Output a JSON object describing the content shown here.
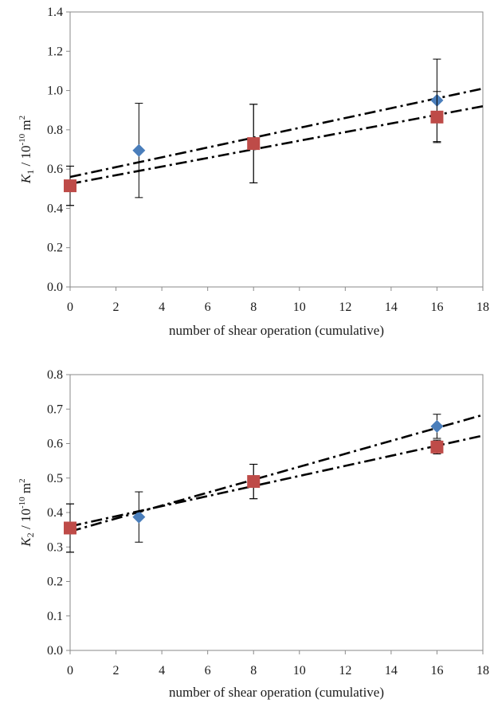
{
  "chart_data": [
    {
      "type": "scatter",
      "ylabel": {
        "var": "K",
        "sub": "1",
        "mid": " / 10",
        "sup": "-10",
        "tail": " m",
        "sup2": "2"
      },
      "xlabel": "number of shear operation (cumulative)",
      "xlim": [
        0,
        18
      ],
      "ylim": [
        0,
        1.4
      ],
      "xticks": [
        "0",
        "2",
        "4",
        "6",
        "8",
        "10",
        "12",
        "14",
        "16",
        "18"
      ],
      "yticks": [
        "0.0",
        "0.2",
        "0.4",
        "0.6",
        "0.8",
        "1.0",
        "1.2",
        "1.4"
      ],
      "grid": false,
      "series": [
        {
          "marker": "diamond",
          "color": "#4a7ebb",
          "points": [
            {
              "x": 0,
              "y": 0.515,
              "err": 0.1
            },
            {
              "x": 3,
              "y": 0.695,
              "err": 0.24
            },
            {
              "x": 8,
              "y": 0.73,
              "err": 0.2
            },
            {
              "x": 16,
              "y": 0.95,
              "err": 0.21
            }
          ],
          "trendline": {
            "y0": 0.56,
            "y1": 1.01,
            "style": "dash-dot"
          }
        },
        {
          "marker": "square",
          "color": "#be4b48",
          "points": [
            {
              "x": 0,
              "y": 0.515,
              "err": 0.1
            },
            {
              "x": 8,
              "y": 0.73,
              "err": 0.2
            },
            {
              "x": 16,
              "y": 0.865,
              "err": 0.13
            }
          ],
          "trendline": {
            "y0": 0.525,
            "y1": 0.92,
            "style": "dash-dot"
          }
        }
      ]
    },
    {
      "type": "scatter",
      "ylabel": {
        "var": "K",
        "sub": "2",
        "mid": " / 10",
        "sup": "-10",
        "tail": " m",
        "sup2": "2"
      },
      "xlabel": "number of shear operation (cumulative)",
      "xlim": [
        0,
        18
      ],
      "ylim": [
        0,
        0.8
      ],
      "xticks": [
        "0",
        "2",
        "4",
        "6",
        "8",
        "10",
        "12",
        "14",
        "16",
        "18"
      ],
      "yticks": [
        "0.0",
        "0.1",
        "0.2",
        "0.3",
        "0.4",
        "0.5",
        "0.6",
        "0.7",
        "0.8"
      ],
      "grid": false,
      "series": [
        {
          "marker": "diamond",
          "color": "#4a7ebb",
          "points": [
            {
              "x": 0,
              "y": 0.355,
              "err": 0.07
            },
            {
              "x": 3,
              "y": 0.387,
              "err": 0.073
            },
            {
              "x": 8,
              "y": 0.49,
              "err": 0.05
            },
            {
              "x": 16,
              "y": 0.65,
              "err": 0.035
            }
          ],
          "trendline": {
            "y0": 0.345,
            "y1": 0.683,
            "style": "dash-dot"
          }
        },
        {
          "marker": "square",
          "color": "#be4b48",
          "points": [
            {
              "x": 0,
              "y": 0.355,
              "err": 0.07
            },
            {
              "x": 8,
              "y": 0.49,
              "err": 0.05
            },
            {
              "x": 16,
              "y": 0.59,
              "err": 0.02
            }
          ],
          "trendline": {
            "y0": 0.36,
            "y1": 0.623,
            "style": "dash-dot"
          }
        }
      ]
    }
  ]
}
